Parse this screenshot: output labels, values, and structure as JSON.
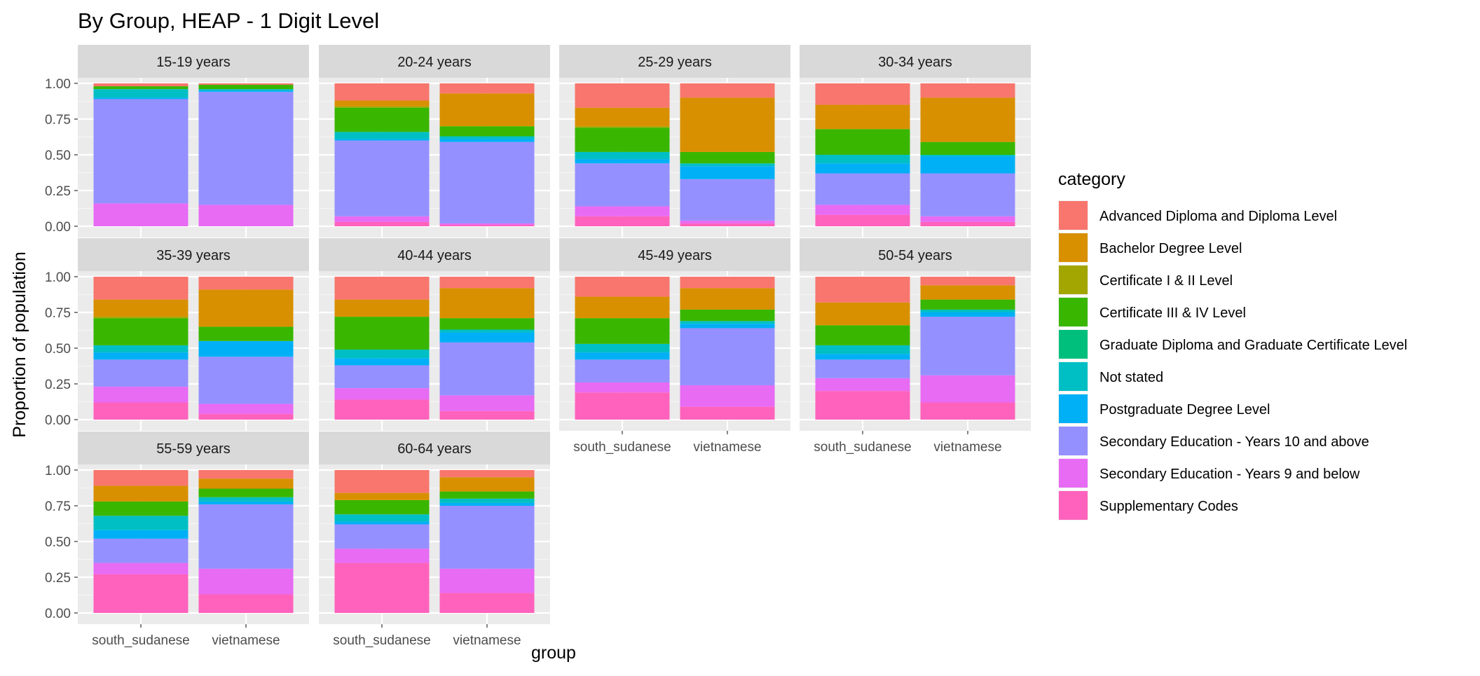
{
  "chart_data": {
    "type": "bar",
    "stacked": true,
    "title": "By Group,  HEAP - 1 Digit Level",
    "xlabel": "group",
    "ylabel": "Proportion of population",
    "ylim": [
      0,
      1
    ],
    "yticks": [
      "0.00",
      "0.25",
      "0.50",
      "0.75",
      "1.00"
    ],
    "categories": [
      "south_sudanese",
      "vietnamese"
    ],
    "legend": {
      "title": "category",
      "placement": "right",
      "items": [
        {
          "key": "adv",
          "label": "Advanced Diploma and Diploma Level",
          "color": "#F8766D"
        },
        {
          "key": "bach",
          "label": "Bachelor Degree Level",
          "color": "#D89000"
        },
        {
          "key": "cert12",
          "label": "Certificate I & II Level",
          "color": "#A3A500"
        },
        {
          "key": "cert34",
          "label": "Certificate III & IV Level",
          "color": "#39B600"
        },
        {
          "key": "grad",
          "label": "Graduate Diploma and Graduate Certificate Level",
          "color": "#00BF7D"
        },
        {
          "key": "ns",
          "label": "Not stated",
          "color": "#00BFC4"
        },
        {
          "key": "post",
          "label": "Postgraduate Degree Level",
          "color": "#00B0F6"
        },
        {
          "key": "sec10",
          "label": "Secondary Education - Years 10 and above",
          "color": "#9590FF"
        },
        {
          "key": "sec9",
          "label": "Secondary Education - Years 9 and below",
          "color": "#E76BF3"
        },
        {
          "key": "supp",
          "label": "Supplementary Codes",
          "color": "#FF62BC"
        }
      ]
    },
    "stack_order_bottom_to_top": [
      "supp",
      "sec9",
      "sec10",
      "post",
      "ns",
      "grad",
      "cert34",
      "cert12",
      "bach",
      "adv"
    ],
    "panels": [
      {
        "label": "15-19 years",
        "bars": [
          {
            "group": "south_sudanese",
            "values": {
              "supp": 0.0,
              "sec9": 0.16,
              "sec10": 0.73,
              "post": 0.01,
              "ns": 0.06,
              "grad": 0.0,
              "cert34": 0.02,
              "cert12": 0.0,
              "bach": 0.0,
              "adv": 0.02
            }
          },
          {
            "group": "vietnamese",
            "values": {
              "supp": 0.0,
              "sec9": 0.15,
              "sec10": 0.79,
              "post": 0.01,
              "ns": 0.01,
              "grad": 0.0,
              "cert34": 0.03,
              "cert12": 0.0,
              "bach": 0.0,
              "adv": 0.01
            }
          }
        ]
      },
      {
        "label": "20-24 years",
        "bars": [
          {
            "group": "south_sudanese",
            "values": {
              "supp": 0.03,
              "sec9": 0.04,
              "sec10": 0.53,
              "post": 0.01,
              "ns": 0.05,
              "grad": 0.0,
              "cert34": 0.17,
              "cert12": 0.01,
              "bach": 0.04,
              "adv": 0.12
            }
          },
          {
            "group": "vietnamese",
            "values": {
              "supp": 0.01,
              "sec9": 0.01,
              "sec10": 0.57,
              "post": 0.02,
              "ns": 0.02,
              "grad": 0.0,
              "cert34": 0.07,
              "cert12": 0.0,
              "bach": 0.23,
              "adv": 0.07
            }
          }
        ]
      },
      {
        "label": "25-29 years",
        "bars": [
          {
            "group": "south_sudanese",
            "values": {
              "supp": 0.07,
              "sec9": 0.07,
              "sec10": 0.3,
              "post": 0.03,
              "ns": 0.05,
              "grad": 0.0,
              "cert34": 0.17,
              "cert12": 0.01,
              "bach": 0.13,
              "adv": 0.17
            }
          },
          {
            "group": "vietnamese",
            "values": {
              "supp": 0.02,
              "sec9": 0.02,
              "sec10": 0.29,
              "post": 0.09,
              "ns": 0.02,
              "grad": 0.0,
              "cert34": 0.08,
              "cert12": 0.0,
              "bach": 0.38,
              "adv": 0.1
            }
          }
        ]
      },
      {
        "label": "30-34 years",
        "bars": [
          {
            "group": "south_sudanese",
            "values": {
              "supp": 0.08,
              "sec9": 0.07,
              "sec10": 0.22,
              "post": 0.07,
              "ns": 0.06,
              "grad": 0.0,
              "cert34": 0.18,
              "cert12": 0.0,
              "bach": 0.17,
              "adv": 0.15
            }
          },
          {
            "group": "vietnamese",
            "values": {
              "supp": 0.03,
              "sec9": 0.04,
              "sec10": 0.3,
              "post": 0.12,
              "ns": 0.01,
              "grad": 0.0,
              "cert34": 0.09,
              "cert12": 0.0,
              "bach": 0.31,
              "adv": 0.1
            }
          }
        ]
      },
      {
        "label": "35-39 years",
        "bars": [
          {
            "group": "south_sudanese",
            "values": {
              "supp": 0.12,
              "sec9": 0.11,
              "sec10": 0.19,
              "post": 0.05,
              "ns": 0.05,
              "grad": 0.0,
              "cert34": 0.19,
              "cert12": 0.01,
              "bach": 0.12,
              "adv": 0.16
            }
          },
          {
            "group": "vietnamese",
            "values": {
              "supp": 0.04,
              "sec9": 0.07,
              "sec10": 0.33,
              "post": 0.11,
              "ns": 0.0,
              "grad": 0.0,
              "cert34": 0.1,
              "cert12": 0.0,
              "bach": 0.26,
              "adv": 0.09
            }
          }
        ]
      },
      {
        "label": "40-44 years",
        "bars": [
          {
            "group": "south_sudanese",
            "values": {
              "supp": 0.14,
              "sec9": 0.08,
              "sec10": 0.16,
              "post": 0.05,
              "ns": 0.06,
              "grad": 0.0,
              "cert34": 0.23,
              "cert12": 0.0,
              "bach": 0.12,
              "adv": 0.16
            }
          },
          {
            "group": "vietnamese",
            "values": {
              "supp": 0.06,
              "sec9": 0.11,
              "sec10": 0.37,
              "post": 0.07,
              "ns": 0.02,
              "grad": 0.0,
              "cert34": 0.08,
              "cert12": 0.0,
              "bach": 0.21,
              "adv": 0.08
            }
          }
        ]
      },
      {
        "label": "45-49 years",
        "bars": [
          {
            "group": "south_sudanese",
            "values": {
              "supp": 0.19,
              "sec9": 0.07,
              "sec10": 0.16,
              "post": 0.05,
              "ns": 0.06,
              "grad": 0.0,
              "cert34": 0.18,
              "cert12": 0.0,
              "bach": 0.15,
              "adv": 0.14
            }
          },
          {
            "group": "vietnamese",
            "values": {
              "supp": 0.09,
              "sec9": 0.15,
              "sec10": 0.4,
              "post": 0.03,
              "ns": 0.02,
              "grad": 0.0,
              "cert34": 0.08,
              "cert12": 0.0,
              "bach": 0.15,
              "adv": 0.08
            }
          }
        ]
      },
      {
        "label": "50-54 years",
        "bars": [
          {
            "group": "south_sudanese",
            "values": {
              "supp": 0.2,
              "sec9": 0.09,
              "sec10": 0.13,
              "post": 0.04,
              "ns": 0.06,
              "grad": 0.0,
              "cert34": 0.14,
              "cert12": 0.0,
              "bach": 0.16,
              "adv": 0.18
            }
          },
          {
            "group": "vietnamese",
            "values": {
              "supp": 0.12,
              "sec9": 0.19,
              "sec10": 0.41,
              "post": 0.03,
              "ns": 0.02,
              "grad": 0.0,
              "cert34": 0.07,
              "cert12": 0.0,
              "bach": 0.1,
              "adv": 0.06
            }
          }
        ]
      },
      {
        "label": "55-59 years",
        "bars": [
          {
            "group": "south_sudanese",
            "values": {
              "supp": 0.27,
              "sec9": 0.08,
              "sec10": 0.17,
              "post": 0.06,
              "ns": 0.1,
              "grad": 0.0,
              "cert34": 0.1,
              "cert12": 0.0,
              "bach": 0.11,
              "adv": 0.11
            }
          },
          {
            "group": "vietnamese",
            "values": {
              "supp": 0.13,
              "sec9": 0.18,
              "sec10": 0.45,
              "post": 0.02,
              "ns": 0.03,
              "grad": 0.0,
              "cert34": 0.06,
              "cert12": 0.0,
              "bach": 0.07,
              "adv": 0.06
            }
          }
        ]
      },
      {
        "label": "60-64 years",
        "bars": [
          {
            "group": "south_sudanese",
            "values": {
              "supp": 0.35,
              "sec9": 0.1,
              "sec10": 0.17,
              "post": 0.02,
              "ns": 0.05,
              "grad": 0.0,
              "cert34": 0.1,
              "cert12": 0.0,
              "bach": 0.05,
              "adv": 0.16
            }
          },
          {
            "group": "vietnamese",
            "values": {
              "supp": 0.14,
              "sec9": 0.17,
              "sec10": 0.44,
              "post": 0.02,
              "ns": 0.03,
              "grad": 0.0,
              "cert34": 0.05,
              "cert12": 0.0,
              "bach": 0.1,
              "adv": 0.05
            }
          }
        ]
      }
    ]
  }
}
